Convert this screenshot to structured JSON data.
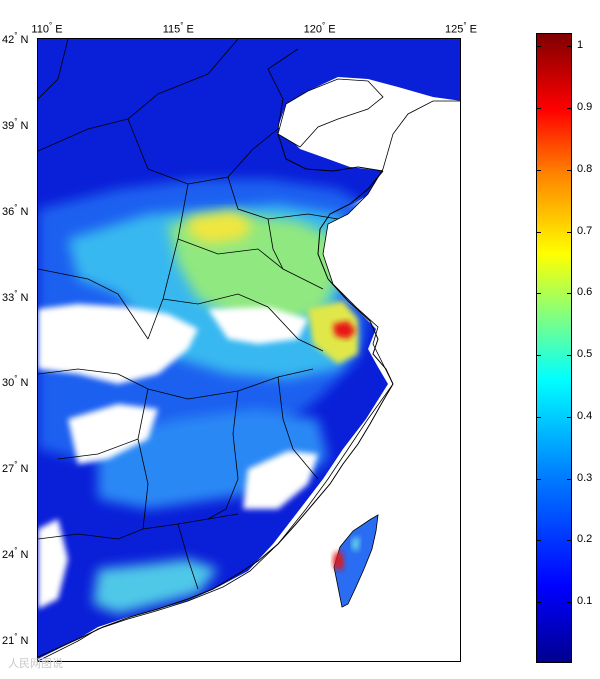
{
  "map": {
    "lon_ticks": [
      {
        "value": 110,
        "label": "110",
        "hemi": "E"
      },
      {
        "value": 115,
        "label": "115",
        "hemi": "E"
      },
      {
        "value": 120,
        "label": "120",
        "hemi": "E"
      },
      {
        "value": 125,
        "label": "125",
        "hemi": "E"
      }
    ],
    "lat_ticks": [
      {
        "value": 42,
        "label": "42",
        "hemi": "N"
      },
      {
        "value": 39,
        "label": "39",
        "hemi": "N"
      },
      {
        "value": 36,
        "label": "36",
        "hemi": "N"
      },
      {
        "value": 33,
        "label": "33",
        "hemi": "N"
      },
      {
        "value": 30,
        "label": "30",
        "hemi": "N"
      },
      {
        "value": 27,
        "label": "27",
        "hemi": "N"
      },
      {
        "value": 24,
        "label": "24",
        "hemi": "N"
      },
      {
        "value": 21,
        "label": "21",
        "hemi": "N"
      }
    ],
    "lon_range": [
      110,
      125
    ],
    "lat_range": [
      20.2,
      42
    ],
    "ocean_color": "#ffffff",
    "border_color": "#000000"
  },
  "colorbar": {
    "ticks": [
      "0.1",
      "0.2",
      "0.3",
      "0.4",
      "0.5",
      "0.6",
      "0.7",
      "0.8",
      "0.9",
      "1"
    ],
    "tick_values": [
      0.1,
      0.2,
      0.3,
      0.4,
      0.5,
      0.6,
      0.7,
      0.8,
      0.9,
      1.0
    ],
    "range": [
      0.0,
      1.02
    ],
    "colormap": "jet"
  },
  "watermark": "人民网图说"
}
